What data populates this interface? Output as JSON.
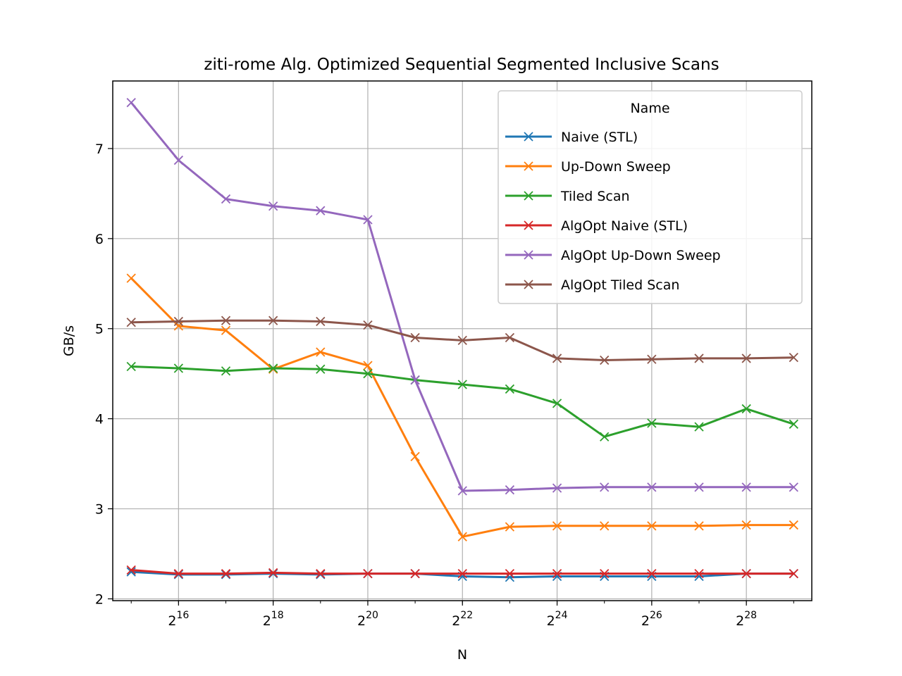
{
  "chart_data": {
    "type": "line",
    "title": "ziti-rome Alg. Optimized Sequential Segmented Inclusive Scans",
    "xlabel": "N",
    "ylabel": "GB/s",
    "x_scale": "log2",
    "x": [
      32768,
      65536,
      131072,
      262144,
      524288,
      1048576,
      2097152,
      4194304,
      8388608,
      16777216,
      33554432,
      67108864,
      134217728,
      268435456,
      536870912
    ],
    "xlim": [
      25000,
      700000000
    ],
    "ylim": [
      1.98,
      7.75
    ],
    "x_ticks": [
      {
        "value": 65536,
        "base": "2",
        "exp": "16"
      },
      {
        "value": 262144,
        "base": "2",
        "exp": "18"
      },
      {
        "value": 1048576,
        "base": "2",
        "exp": "20"
      },
      {
        "value": 4194304,
        "base": "2",
        "exp": "22"
      },
      {
        "value": 16777216,
        "base": "2",
        "exp": "24"
      },
      {
        "value": 67108864,
        "base": "2",
        "exp": "26"
      },
      {
        "value": 268435456,
        "base": "2",
        "exp": "28"
      }
    ],
    "y_ticks": [
      2,
      3,
      4,
      5,
      6,
      7
    ],
    "y_tick_labels": [
      "2",
      "3",
      "4",
      "5",
      "6",
      "7"
    ],
    "grid": true,
    "marker": "x",
    "legend": {
      "title": "Name",
      "position": "top-right"
    },
    "series": [
      {
        "name": "Naive (STL)",
        "color": "#1f77b4",
        "values": [
          2.3,
          2.27,
          2.27,
          2.28,
          2.27,
          2.28,
          2.28,
          2.25,
          2.24,
          2.25,
          2.25,
          2.25,
          2.25,
          2.28,
          2.28
        ]
      },
      {
        "name": "Up-Down Sweep",
        "color": "#ff7f0e",
        "values": [
          5.56,
          5.03,
          4.98,
          4.55,
          4.74,
          4.59,
          3.58,
          2.69,
          2.8,
          2.81,
          2.81,
          2.81,
          2.81,
          2.82,
          2.82
        ]
      },
      {
        "name": "Tiled Scan",
        "color": "#2ca02c",
        "values": [
          4.58,
          4.56,
          4.53,
          4.56,
          4.55,
          4.5,
          4.43,
          4.38,
          4.33,
          4.17,
          3.8,
          3.95,
          3.91,
          4.11,
          3.94
        ]
      },
      {
        "name": "AlgOpt Naive (STL)",
        "color": "#d62728",
        "values": [
          2.32,
          2.28,
          2.28,
          2.29,
          2.28,
          2.28,
          2.28,
          2.28,
          2.28,
          2.28,
          2.28,
          2.28,
          2.28,
          2.28,
          2.28
        ]
      },
      {
        "name": "AlgOpt Up-Down Sweep",
        "color": "#9467bd",
        "values": [
          7.51,
          6.87,
          6.44,
          6.36,
          6.31,
          6.21,
          4.43,
          3.2,
          3.21,
          3.23,
          3.24,
          3.24,
          3.24,
          3.24,
          3.24
        ]
      },
      {
        "name": "AlgOpt Tiled Scan",
        "color": "#8c564b",
        "values": [
          5.07,
          5.08,
          5.09,
          5.09,
          5.08,
          5.04,
          4.9,
          4.87,
          4.9,
          4.67,
          4.65,
          4.66,
          4.67,
          4.67,
          4.68
        ]
      }
    ]
  }
}
